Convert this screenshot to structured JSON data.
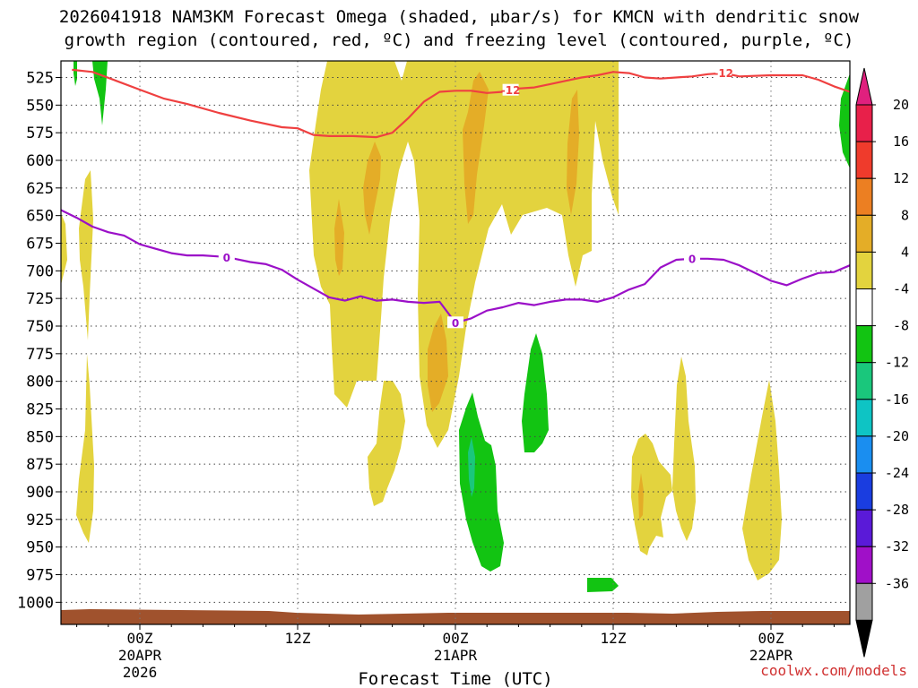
{
  "chart_data": {
    "type": "contour",
    "title_line1": "2026041918 NAM3KM Forecast Omega (shaded, μbar/s) for KMCN with dendritic snow",
    "title_line2": "growth region (contoured, red, ºC) and freezing level (contoured, purple, ºC)",
    "xlabel": "Forecast Time (UTC)",
    "credit": "coolwx.com/models",
    "x_range_hours": [
      -5,
      45
    ],
    "y_range_mb": [
      1020,
      510
    ],
    "y_ticks": [
      "525",
      "550",
      "575",
      "600",
      "625",
      "650",
      "675",
      "700",
      "725",
      "750",
      "775",
      "800",
      "825",
      "850",
      "875",
      "900",
      "925",
      "950",
      "975",
      "1000"
    ],
    "x_ticks": [
      {
        "hour": 0,
        "line1": "00Z",
        "line2": "20APR",
        "line3": "2026"
      },
      {
        "hour": 10,
        "line1": "12Z",
        "line2": "",
        "line3": ""
      },
      {
        "hour": 20,
        "line1": "00Z",
        "line2": "21APR",
        "line3": ""
      },
      {
        "hour": 30,
        "line1": "12Z",
        "line2": "",
        "line3": ""
      },
      {
        "hour": 40,
        "line1": "00Z",
        "line2": "22APR",
        "line3": ""
      }
    ],
    "colorbar": {
      "labels": [
        "20",
        "16",
        "12",
        "8",
        "4",
        "-4",
        "-8",
        "-12",
        "-16",
        "-20",
        "-24",
        "-28",
        "-32",
        "-36"
      ],
      "colors": [
        "#e8204a",
        "#ef3b2c",
        "#ec7f22",
        "#e4ad27",
        "#e3d33e",
        "#ffffff",
        "#12c412",
        "#1ac77c",
        "#0ec4c4",
        "#1a8ef0",
        "#1a3de0",
        "#5a1ad8",
        "#a010c8",
        "#a0a0a0"
      ],
      "top_arrow_color": "#e0207e",
      "bottom_arrow_color": "#000000"
    },
    "contours": {
      "dendritic_minus12": {
        "color": "#ef4040",
        "label": "-12",
        "points": [
          [
            -4.3,
            518
          ],
          [
            -3,
            520
          ],
          [
            -1.5,
            528
          ],
          [
            0,
            536
          ],
          [
            1.5,
            544
          ],
          [
            3,
            549
          ],
          [
            5,
            557
          ],
          [
            7,
            564
          ],
          [
            9,
            570
          ],
          [
            10,
            571
          ],
          [
            11,
            577
          ],
          [
            12,
            578
          ],
          [
            13.5,
            578
          ],
          [
            15,
            579
          ],
          [
            16,
            575
          ],
          [
            17,
            562
          ],
          [
            18,
            547
          ],
          [
            19,
            538
          ],
          [
            20,
            537
          ],
          [
            21,
            537
          ],
          [
            22,
            539
          ],
          [
            23,
            538
          ],
          [
            24,
            535
          ],
          [
            25,
            534
          ],
          [
            26,
            531
          ],
          [
            27,
            528
          ],
          [
            28,
            525
          ],
          [
            29,
            523
          ],
          [
            30,
            520
          ],
          [
            31,
            521
          ],
          [
            32,
            525
          ],
          [
            33,
            526
          ],
          [
            35,
            524
          ],
          [
            36,
            522
          ],
          [
            37,
            521
          ],
          [
            38,
            524
          ],
          [
            40,
            523
          ],
          [
            42,
            523
          ],
          [
            43,
            527
          ],
          [
            44,
            533
          ],
          [
            45,
            538
          ]
        ]
      },
      "freezing_0": {
        "color": "#9b10c8",
        "label": "0",
        "points": [
          [
            -5,
            645
          ],
          [
            -4,
            652
          ],
          [
            -3,
            660
          ],
          [
            -2,
            665
          ],
          [
            -1,
            668
          ],
          [
            0,
            676
          ],
          [
            1,
            680
          ],
          [
            2,
            684
          ],
          [
            3,
            686
          ],
          [
            4,
            686
          ],
          [
            5,
            687
          ],
          [
            6,
            689
          ],
          [
            7,
            692
          ],
          [
            8,
            694
          ],
          [
            9,
            699
          ],
          [
            10,
            708
          ],
          [
            11,
            716
          ],
          [
            12,
            724
          ],
          [
            13,
            727
          ],
          [
            14,
            723
          ],
          [
            15,
            727
          ],
          [
            16,
            726
          ],
          [
            17,
            728
          ],
          [
            18,
            729
          ],
          [
            19,
            728
          ],
          [
            20,
            747
          ],
          [
            21,
            743
          ],
          [
            22,
            736
          ],
          [
            23,
            733
          ],
          [
            24,
            729
          ],
          [
            25,
            731
          ],
          [
            26,
            728
          ],
          [
            27,
            726
          ],
          [
            28,
            726
          ],
          [
            29,
            728
          ],
          [
            30,
            724
          ],
          [
            31,
            717
          ],
          [
            32,
            712
          ],
          [
            33,
            697
          ],
          [
            34,
            690
          ],
          [
            35,
            689
          ],
          [
            36,
            689
          ],
          [
            37,
            690
          ],
          [
            38,
            695
          ],
          [
            39,
            702
          ],
          [
            40,
            709
          ],
          [
            41,
            713
          ],
          [
            42,
            707
          ],
          [
            43,
            702
          ],
          [
            44,
            701
          ],
          [
            45,
            695
          ]
        ]
      }
    },
    "shaded_regions": [
      {
        "name": "upward-motion-4-8",
        "color": "#e3d33e",
        "values": [
          4,
          8
        ]
      },
      {
        "name": "upward-motion-8-12",
        "color": "#e4ad27",
        "values": [
          8,
          12
        ]
      },
      {
        "name": "downward-motion-4-8",
        "color": "#12c412",
        "values": [
          -4,
          -8
        ]
      },
      {
        "name": "downward-motion-8-12",
        "color": "#1ac77c",
        "values": [
          -8,
          -12
        ]
      }
    ],
    "ground_color": "#a0522d"
  }
}
